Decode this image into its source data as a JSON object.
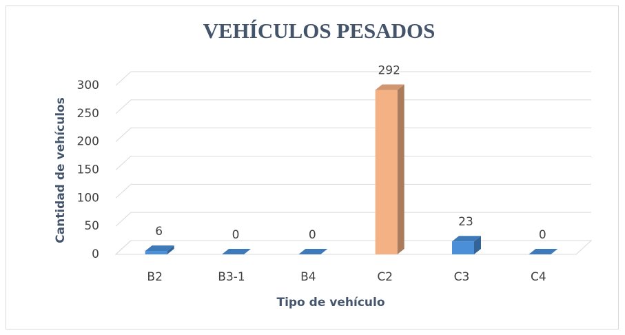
{
  "chart_data": {
    "type": "bar3d",
    "title": "VEHÍCULOS PESADOS",
    "x_label": "Tipo de vehículo",
    "y_label": "Cantidad de vehículos",
    "categories": [
      "B2",
      "B3-1",
      "B4",
      "C2",
      "C3",
      "C4"
    ],
    "values": [
      6,
      0,
      0,
      292,
      23,
      0
    ],
    "colors": [
      "#4a8fd8",
      "#4a8fd8",
      "#4a8fd8",
      "#f4b183",
      "#4a8fd8",
      "#4a8fd8"
    ],
    "ylim": [
      0,
      300
    ],
    "yticks": [
      0,
      50,
      100,
      150,
      200,
      250,
      300
    ],
    "grid": true
  }
}
